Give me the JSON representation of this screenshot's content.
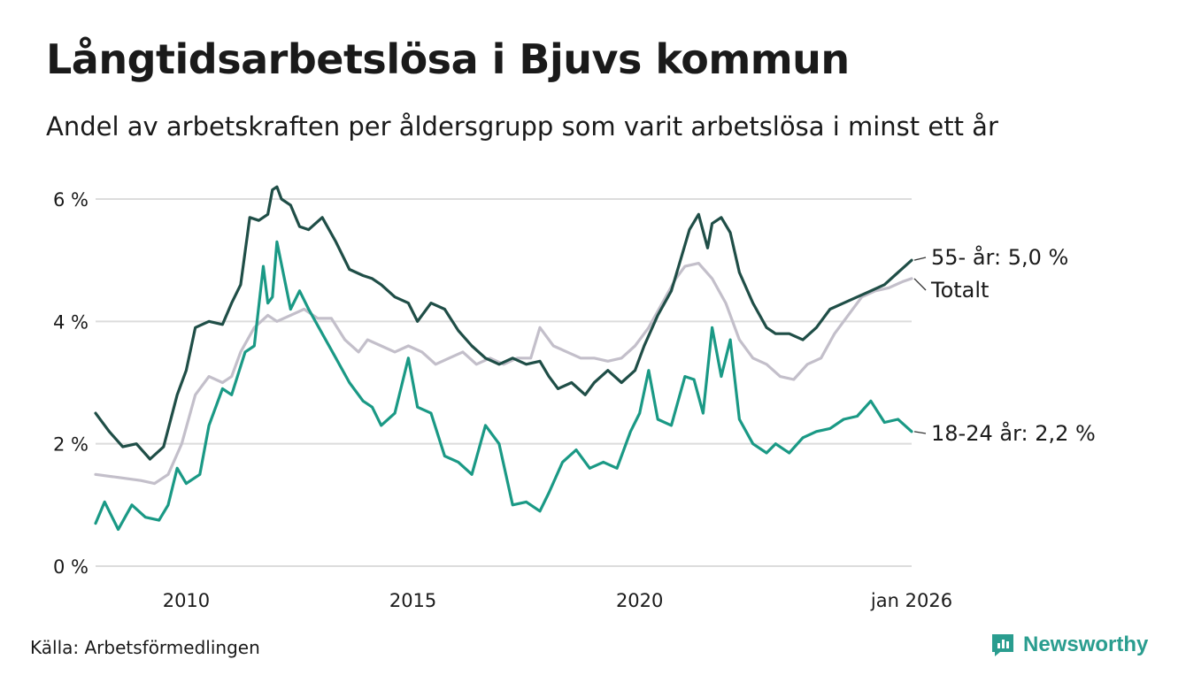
{
  "title": "Långtidsarbetslösa i Bjuvs kommun",
  "subtitle": "Andel av arbetskraften per åldersgrupp som varit arbetslösa i minst ett år",
  "source": "Källa: Arbetsförmedlingen",
  "brand": "Newsworthy",
  "colors": {
    "s55": "#1f4e47",
    "total": "#c3bfca",
    "s1824": "#1a9985",
    "grid": "#dcdcdc",
    "brand": "#2a9d8f"
  },
  "chart_data": {
    "type": "line",
    "title": "Långtidsarbetslösa i Bjuvs kommun",
    "xlabel": "",
    "ylabel": "",
    "xlim": [
      2008.0,
      2026.0
    ],
    "ylim": [
      0,
      6
    ],
    "y_ticks": [
      {
        "value": 0,
        "label": "0 %"
      },
      {
        "value": 2,
        "label": "2 %"
      },
      {
        "value": 4,
        "label": "4 %"
      },
      {
        "value": 6,
        "label": "6 %"
      }
    ],
    "x_ticks": [
      {
        "value": 2010,
        "label": "2010"
      },
      {
        "value": 2015,
        "label": "2015"
      },
      {
        "value": 2020,
        "label": "2020"
      },
      {
        "value": 2026.0,
        "label": "jan 2026"
      }
    ],
    "series": [
      {
        "key": "total",
        "name": "Totalt",
        "end_label": "Totalt",
        "x": [
          2008.0,
          2008.5,
          2009.0,
          2009.3,
          2009.6,
          2009.9,
          2010.2,
          2010.5,
          2010.8,
          2011.0,
          2011.2,
          2011.5,
          2011.8,
          2012.0,
          2012.3,
          2012.6,
          2012.9,
          2013.2,
          2013.5,
          2013.8,
          2014.0,
          2014.3,
          2014.6,
          2014.9,
          2015.2,
          2015.5,
          2015.8,
          2016.1,
          2016.4,
          2016.7,
          2017.0,
          2017.3,
          2017.6,
          2017.8,
          2018.1,
          2018.4,
          2018.7,
          2019.0,
          2019.3,
          2019.6,
          2019.9,
          2020.2,
          2020.5,
          2020.8,
          2021.0,
          2021.3,
          2021.6,
          2021.9,
          2022.2,
          2022.5,
          2022.8,
          2023.1,
          2023.4,
          2023.7,
          2024.0,
          2024.3,
          2024.6,
          2024.9,
          2025.2,
          2025.5,
          2025.8,
          2026.0
        ],
        "values": [
          1.5,
          1.45,
          1.4,
          1.35,
          1.5,
          2.0,
          2.8,
          3.1,
          3.0,
          3.1,
          3.5,
          3.9,
          4.1,
          4.0,
          4.1,
          4.2,
          4.05,
          4.05,
          3.7,
          3.5,
          3.7,
          3.6,
          3.5,
          3.6,
          3.5,
          3.3,
          3.4,
          3.5,
          3.3,
          3.4,
          3.3,
          3.4,
          3.4,
          3.9,
          3.6,
          3.5,
          3.4,
          3.4,
          3.35,
          3.4,
          3.6,
          3.9,
          4.3,
          4.7,
          4.9,
          4.95,
          4.7,
          4.3,
          3.7,
          3.4,
          3.3,
          3.1,
          3.05,
          3.3,
          3.4,
          3.8,
          4.1,
          4.4,
          4.5,
          4.55,
          4.65,
          4.7
        ]
      },
      {
        "key": "s55",
        "name": "55- år",
        "end_label": "55- år: 5,0 %",
        "x": [
          2008.0,
          2008.3,
          2008.6,
          2008.9,
          2009.2,
          2009.5,
          2009.8,
          2010.0,
          2010.2,
          2010.5,
          2010.8,
          2011.0,
          2011.2,
          2011.4,
          2011.6,
          2011.8,
          2011.9,
          2012.0,
          2012.1,
          2012.3,
          2012.5,
          2012.7,
          2013.0,
          2013.3,
          2013.6,
          2013.9,
          2014.1,
          2014.3,
          2014.6,
          2014.9,
          2015.1,
          2015.4,
          2015.7,
          2016.0,
          2016.3,
          2016.6,
          2016.9,
          2017.2,
          2017.5,
          2017.8,
          2018.0,
          2018.2,
          2018.5,
          2018.8,
          2019.0,
          2019.3,
          2019.6,
          2019.9,
          2020.1,
          2020.4,
          2020.7,
          2020.9,
          2021.1,
          2021.3,
          2021.5,
          2021.6,
          2021.8,
          2022.0,
          2022.2,
          2022.5,
          2022.8,
          2023.0,
          2023.3,
          2023.6,
          2023.9,
          2024.2,
          2024.5,
          2024.8,
          2025.1,
          2025.4,
          2025.7,
          2026.0
        ],
        "values": [
          2.5,
          2.2,
          1.95,
          2.0,
          1.75,
          1.95,
          2.8,
          3.2,
          3.9,
          4.0,
          3.95,
          4.3,
          4.6,
          5.7,
          5.65,
          5.75,
          6.15,
          6.2,
          6.0,
          5.9,
          5.55,
          5.5,
          5.7,
          5.3,
          4.85,
          4.75,
          4.7,
          4.6,
          4.4,
          4.3,
          4.0,
          4.3,
          4.2,
          3.85,
          3.6,
          3.4,
          3.3,
          3.4,
          3.3,
          3.35,
          3.1,
          2.9,
          3.0,
          2.8,
          3.0,
          3.2,
          3.0,
          3.2,
          3.6,
          4.1,
          4.5,
          5.0,
          5.5,
          5.75,
          5.2,
          5.6,
          5.7,
          5.45,
          4.8,
          4.3,
          3.9,
          3.8,
          3.8,
          3.7,
          3.9,
          4.2,
          4.3,
          4.4,
          4.5,
          4.6,
          4.8,
          5.0
        ]
      },
      {
        "key": "s1824",
        "name": "18-24 år",
        "end_label": "18-24 år: 2,2 %",
        "x": [
          2008.0,
          2008.2,
          2008.5,
          2008.8,
          2009.1,
          2009.4,
          2009.6,
          2009.8,
          2010.0,
          2010.3,
          2010.5,
          2010.8,
          2011.0,
          2011.3,
          2011.5,
          2011.7,
          2011.8,
          2011.9,
          2012.0,
          2012.3,
          2012.5,
          2012.7,
          2013.0,
          2013.3,
          2013.6,
          2013.9,
          2014.1,
          2014.3,
          2014.6,
          2014.9,
          2015.1,
          2015.4,
          2015.7,
          2016.0,
          2016.3,
          2016.6,
          2016.9,
          2017.2,
          2017.5,
          2017.8,
          2018.0,
          2018.3,
          2018.6,
          2018.9,
          2019.2,
          2019.5,
          2019.8,
          2020.0,
          2020.2,
          2020.4,
          2020.7,
          2021.0,
          2021.2,
          2021.4,
          2021.6,
          2021.8,
          2022.0,
          2022.2,
          2022.5,
          2022.8,
          2023.0,
          2023.3,
          2023.6,
          2023.9,
          2024.2,
          2024.5,
          2024.8,
          2025.1,
          2025.4,
          2025.7,
          2026.0
        ],
        "values": [
          0.7,
          1.05,
          0.6,
          1.0,
          0.8,
          0.75,
          1.0,
          1.6,
          1.35,
          1.5,
          2.3,
          2.9,
          2.8,
          3.5,
          3.6,
          4.9,
          4.3,
          4.4,
          5.3,
          4.2,
          4.5,
          4.2,
          3.8,
          3.4,
          3.0,
          2.7,
          2.6,
          2.3,
          2.5,
          3.4,
          2.6,
          2.5,
          1.8,
          1.7,
          1.5,
          2.3,
          2.0,
          1.0,
          1.05,
          0.9,
          1.2,
          1.7,
          1.9,
          1.6,
          1.7,
          1.6,
          2.2,
          2.5,
          3.2,
          2.4,
          2.3,
          3.1,
          3.05,
          2.5,
          3.9,
          3.1,
          3.7,
          2.4,
          2.0,
          1.85,
          2.0,
          1.85,
          2.1,
          2.2,
          2.25,
          2.4,
          2.45,
          2.7,
          2.35,
          2.4,
          2.2
        ]
      }
    ]
  }
}
